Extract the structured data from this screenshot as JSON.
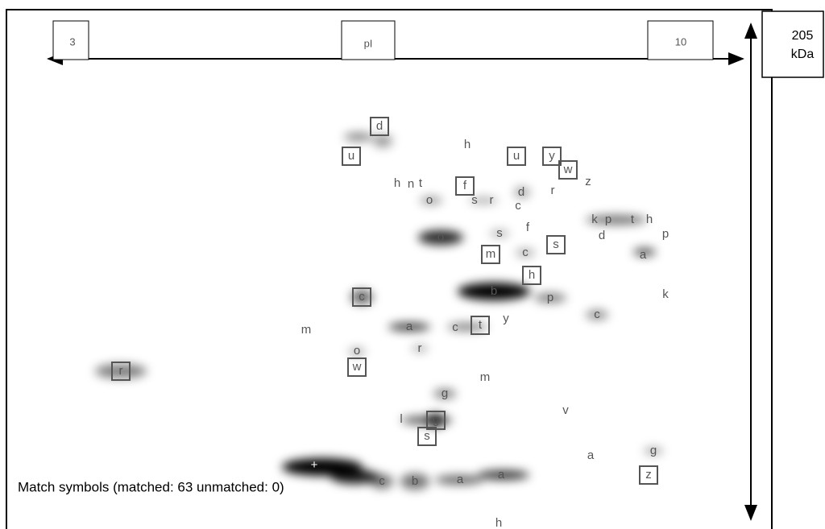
{
  "axis": {
    "left": "3",
    "center": "pI",
    "right": "10"
  },
  "mass": {
    "top": "205",
    "unit": "kDa"
  },
  "status": "Match symbols (matched: 63 unmatched: 0)",
  "spots": [
    {
      "label": "d",
      "boxed": true
    },
    {
      "label": "u",
      "boxed": true
    },
    {
      "label": "h",
      "boxed": false
    },
    {
      "label": "u",
      "boxed": true
    },
    {
      "label": "y",
      "boxed": true
    },
    {
      "label": "w",
      "boxed": true
    },
    {
      "label": "z",
      "boxed": false
    },
    {
      "label": "h",
      "boxed": false
    },
    {
      "label": "n",
      "boxed": false
    },
    {
      "label": "t",
      "boxed": false
    },
    {
      "label": "f",
      "boxed": true
    },
    {
      "label": "o",
      "boxed": false
    },
    {
      "label": "s",
      "boxed": false
    },
    {
      "label": "r",
      "boxed": false
    },
    {
      "label": "d",
      "boxed": false
    },
    {
      "label": "c",
      "boxed": false
    },
    {
      "label": "r",
      "boxed": false
    },
    {
      "label": "k",
      "boxed": false
    },
    {
      "label": "p",
      "boxed": false
    },
    {
      "label": "t",
      "boxed": false
    },
    {
      "label": "h",
      "boxed": false
    },
    {
      "label": "d",
      "boxed": false
    },
    {
      "label": "p",
      "boxed": false
    },
    {
      "label": "s",
      "boxed": false
    },
    {
      "label": "f",
      "boxed": false
    },
    {
      "label": "o",
      "boxed": false
    },
    {
      "label": "s",
      "boxed": true
    },
    {
      "label": "m",
      "boxed": true
    },
    {
      "label": "c",
      "boxed": false
    },
    {
      "label": "a",
      "boxed": false
    },
    {
      "label": "h",
      "boxed": true
    },
    {
      "label": "b",
      "boxed": false
    },
    {
      "label": "p",
      "boxed": false
    },
    {
      "label": "k",
      "boxed": false
    },
    {
      "label": "c",
      "boxed": true
    },
    {
      "label": "c",
      "boxed": false
    },
    {
      "label": "m",
      "boxed": false
    },
    {
      "label": "a",
      "boxed": false
    },
    {
      "label": "c",
      "boxed": false
    },
    {
      "label": "t",
      "boxed": true
    },
    {
      "label": "y",
      "boxed": false
    },
    {
      "label": "r",
      "boxed": false
    },
    {
      "label": "o",
      "boxed": false
    },
    {
      "label": "w",
      "boxed": true
    },
    {
      "label": "r",
      "boxed": true
    },
    {
      "label": "m",
      "boxed": false
    },
    {
      "label": "g",
      "boxed": false
    },
    {
      "label": "v",
      "boxed": false
    },
    {
      "label": "l",
      "boxed": false
    },
    {
      "label": "g",
      "boxed": true
    },
    {
      "label": "s",
      "boxed": true
    },
    {
      "label": "a",
      "boxed": false
    },
    {
      "label": "g",
      "boxed": false
    },
    {
      "label": "z",
      "boxed": true
    },
    {
      "label": "+",
      "boxed": false
    },
    {
      "label": "c",
      "boxed": false
    },
    {
      "label": "b",
      "boxed": false
    },
    {
      "label": "a",
      "boxed": false
    },
    {
      "label": "a",
      "boxed": false
    },
    {
      "label": "h",
      "boxed": false
    }
  ]
}
